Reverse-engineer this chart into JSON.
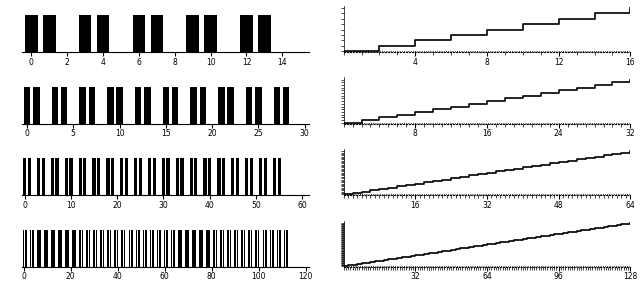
{
  "rows": [
    {
      "N": 16,
      "xlim_left": [
        -0.5,
        15.5
      ],
      "xticks_left": [
        0,
        2,
        4,
        6,
        8,
        10,
        12,
        14
      ],
      "xlim_right": [
        0,
        16
      ],
      "xticks_right": [
        4,
        8,
        12,
        16
      ],
      "yticks_right_count": 9
    },
    {
      "N": 32,
      "xlim_left": [
        -0.5,
        30.5
      ],
      "xticks_left": [
        0,
        5,
        10,
        15,
        20,
        25,
        30
      ],
      "xlim_right": [
        0,
        32
      ],
      "xticks_right": [
        8,
        16,
        24,
        32
      ],
      "yticks_right_count": 17
    },
    {
      "N": 64,
      "xlim_left": [
        -0.5,
        61.5
      ],
      "xticks_left": [
        0,
        10,
        20,
        30,
        40,
        50,
        60
      ],
      "xlim_right": [
        0,
        64
      ],
      "xticks_right": [
        16,
        32,
        48,
        64
      ],
      "yticks_right_count": 33
    },
    {
      "N": 128,
      "xlim_left": [
        -0.5,
        121.5
      ],
      "xticks_left": [
        0,
        20,
        40,
        60,
        80,
        100,
        120
      ],
      "xlim_right": [
        0,
        128
      ],
      "xticks_right": [
        32,
        64,
        96,
        128
      ],
      "yticks_right_count": 65
    }
  ]
}
